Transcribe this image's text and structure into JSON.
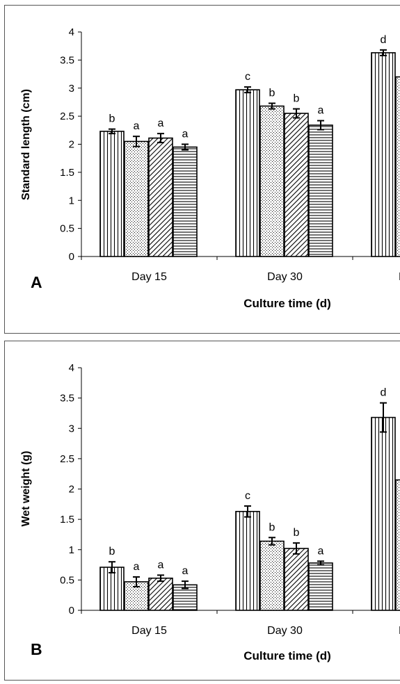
{
  "chart_data": [
    {
      "type": "bar",
      "panel_label": "A",
      "xlabel": "Culture time (d)",
      "ylabel": "Standard length (cm)",
      "ylim": [
        0,
        4
      ],
      "yticks": [
        "0",
        "0.5",
        "1",
        "1.5",
        "2",
        "2.5",
        "3",
        "3.5",
        "4"
      ],
      "categories": [
        "Day 15",
        "Day 30",
        "D"
      ],
      "grid": false,
      "series": [
        {
          "pattern": "vertical-stripes",
          "values": [
            2.23,
            2.97,
            3.63
          ],
          "errors": [
            0.04,
            0.05,
            0.05
          ],
          "letters": [
            "b",
            "c",
            "d"
          ]
        },
        {
          "pattern": "dots",
          "values": [
            2.05,
            2.68,
            3.2
          ],
          "errors": [
            0.09,
            0.05,
            null
          ],
          "letters": [
            "a",
            "b",
            ""
          ]
        },
        {
          "pattern": "diagonal-stripes",
          "values": [
            2.11,
            2.55,
            null
          ],
          "errors": [
            0.08,
            0.08,
            null
          ],
          "letters": [
            "a",
            "b",
            ""
          ]
        },
        {
          "pattern": "horizontal-stripes",
          "values": [
            1.95,
            2.34,
            null
          ],
          "errors": [
            0.05,
            0.08,
            null
          ],
          "letters": [
            "a",
            "a",
            ""
          ]
        }
      ]
    },
    {
      "type": "bar",
      "panel_label": "B",
      "xlabel": "Culture time (d)",
      "ylabel": "Wet weight (g)",
      "ylim": [
        0,
        4
      ],
      "yticks": [
        "0",
        "0.5",
        "1",
        "1.5",
        "2",
        "2.5",
        "3",
        "3.5",
        "4"
      ],
      "categories": [
        "Day 15",
        "Day 30",
        "D"
      ],
      "grid": false,
      "series": [
        {
          "pattern": "vertical-stripes",
          "values": [
            0.71,
            1.63,
            3.18
          ],
          "errors": [
            0.09,
            0.09,
            0.24
          ],
          "letters": [
            "b",
            "c",
            "d"
          ]
        },
        {
          "pattern": "dots",
          "values": [
            0.47,
            1.14,
            2.15
          ],
          "errors": [
            0.08,
            0.06,
            null
          ],
          "letters": [
            "a",
            "b",
            ""
          ]
        },
        {
          "pattern": "diagonal-stripes",
          "values": [
            0.53,
            1.02,
            null
          ],
          "errors": [
            0.05,
            0.09,
            null
          ],
          "letters": [
            "a",
            "b",
            ""
          ]
        },
        {
          "pattern": "horizontal-stripes",
          "values": [
            0.42,
            0.78,
            null
          ],
          "errors": [
            0.06,
            0.03,
            null
          ],
          "letters": [
            "a",
            "a",
            ""
          ]
        }
      ]
    }
  ]
}
